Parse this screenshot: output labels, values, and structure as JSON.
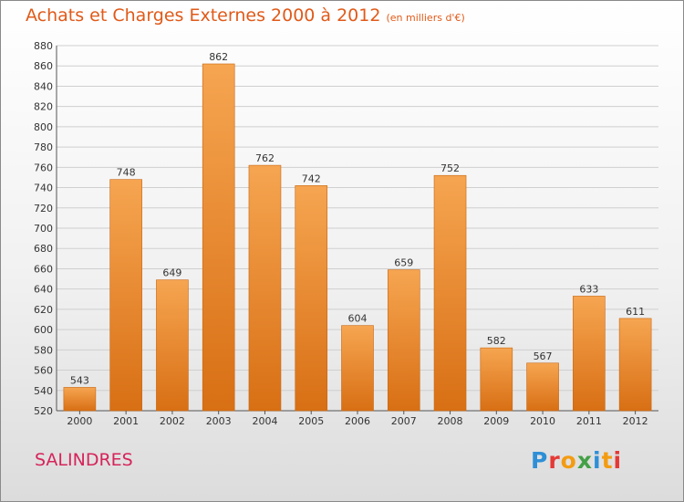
{
  "header": {
    "title": "Achats et Charges Externes 2000 à 2012",
    "subtitle": "(en milliers d'€)"
  },
  "commune": "SALINDRES",
  "logo": {
    "text": "Proxiti",
    "letter_colors": [
      "#2e8fd6",
      "#e53935",
      "#f39c12",
      "#43a047",
      "#2e8fd6",
      "#f39c12",
      "#e53935"
    ]
  },
  "chart_data": {
    "type": "bar",
    "title": "Achats et Charges Externes 2000 à 2012",
    "subtitle": "(en milliers d'€)",
    "xlabel": "",
    "ylabel": "",
    "categories": [
      "2000",
      "2001",
      "2002",
      "2003",
      "2004",
      "2005",
      "2006",
      "2007",
      "2008",
      "2009",
      "2010",
      "2011",
      "2012"
    ],
    "values": [
      543,
      748,
      649,
      862,
      762,
      742,
      604,
      659,
      752,
      582,
      567,
      633,
      611
    ],
    "ylim": [
      520,
      880
    ],
    "yticks": [
      520,
      540,
      560,
      580,
      600,
      620,
      640,
      660,
      680,
      700,
      720,
      740,
      760,
      780,
      800,
      820,
      840,
      860,
      880
    ],
    "grid": true,
    "bar_color": "#f0902f",
    "data_labels": true
  }
}
